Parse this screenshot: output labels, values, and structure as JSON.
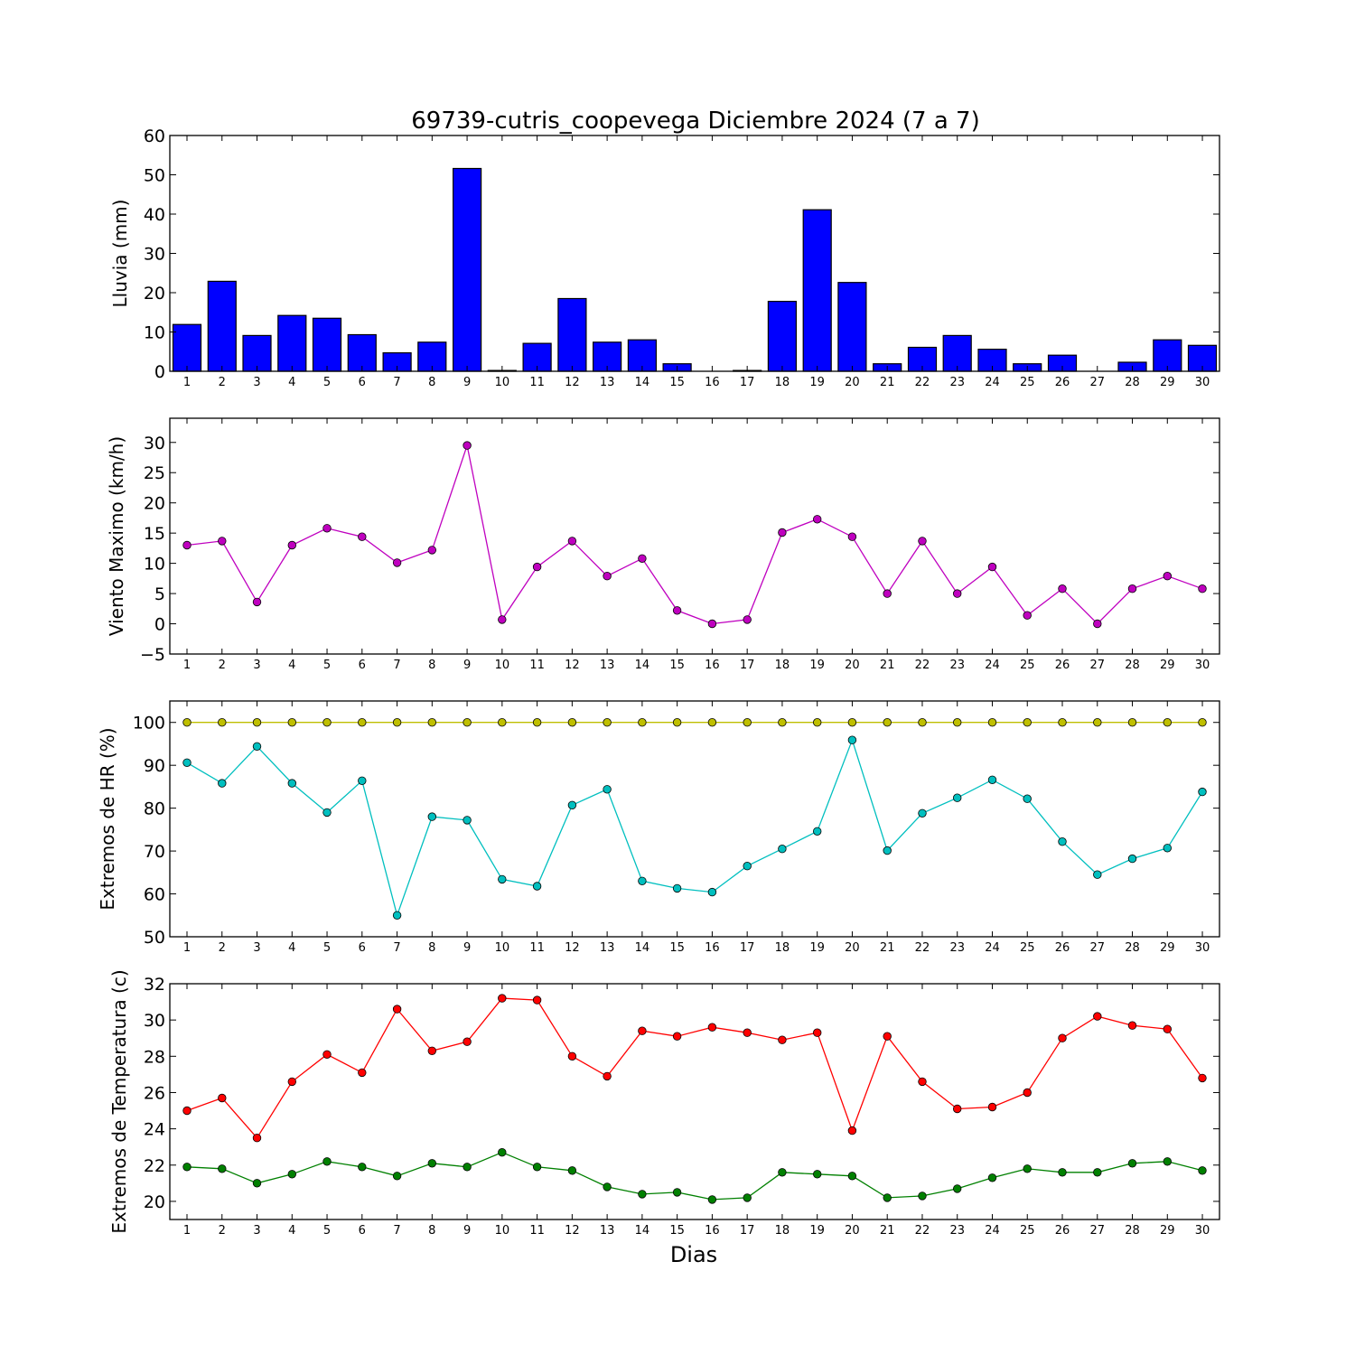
{
  "figure": {
    "title": "69739-cutris_coopevega Diciembre 2024  (7 a 7)",
    "xlabel": "Dias"
  },
  "chart_data": [
    {
      "type": "bar",
      "ylabel": "Lluvia (mm)",
      "ylim": [
        0,
        60
      ],
      "yticks": [
        0,
        10,
        20,
        30,
        40,
        50,
        60
      ],
      "categories": [
        "1",
        "2",
        "3",
        "4",
        "5",
        "6",
        "7",
        "8",
        "9",
        "10",
        "11",
        "12",
        "13",
        "14",
        "15",
        "16",
        "17",
        "18",
        "19",
        "20",
        "21",
        "22",
        "23",
        "24",
        "25",
        "26",
        "27",
        "28",
        "29",
        "30"
      ],
      "series": [
        {
          "color": "#0000ff",
          "values": [
            11.9,
            22.9,
            9.1,
            14.2,
            13.5,
            9.3,
            4.7,
            7.4,
            51.6,
            0.2,
            7.1,
            18.5,
            7.4,
            8.0,
            1.9,
            0.0,
            0.2,
            17.8,
            41.1,
            22.6,
            1.9,
            6.1,
            9.1,
            5.6,
            1.9,
            4.1,
            0.0,
            2.3,
            8.0,
            6.6
          ]
        }
      ],
      "grid": false
    },
    {
      "type": "line",
      "ylabel": "Viento Maximo (km/h)",
      "ylim": [
        -5,
        34
      ],
      "yticks": [
        -5,
        0,
        5,
        10,
        15,
        20,
        25,
        30
      ],
      "categories": [
        "1",
        "2",
        "3",
        "4",
        "5",
        "6",
        "7",
        "8",
        "9",
        "10",
        "11",
        "12",
        "13",
        "14",
        "15",
        "16",
        "17",
        "18",
        "19",
        "20",
        "21",
        "22",
        "23",
        "24",
        "25",
        "26",
        "27",
        "28",
        "29",
        "30"
      ],
      "series": [
        {
          "color": "#bf00bf",
          "values": [
            13.0,
            13.7,
            3.6,
            13.0,
            15.8,
            14.4,
            10.1,
            12.2,
            29.5,
            0.7,
            9.4,
            13.7,
            7.9,
            10.8,
            2.2,
            0.0,
            0.7,
            15.1,
            17.3,
            14.4,
            5.0,
            13.7,
            5.0,
            9.4,
            1.4,
            5.8,
            0.0,
            5.8,
            7.9,
            5.8
          ]
        }
      ],
      "grid": false
    },
    {
      "type": "line",
      "ylabel": "Extremos de HR (%)",
      "ylim": [
        50,
        105
      ],
      "yticks": [
        50,
        60,
        70,
        80,
        90,
        100
      ],
      "categories": [
        "1",
        "2",
        "3",
        "4",
        "5",
        "6",
        "7",
        "8",
        "9",
        "10",
        "11",
        "12",
        "13",
        "14",
        "15",
        "16",
        "17",
        "18",
        "19",
        "20",
        "21",
        "22",
        "23",
        "24",
        "25",
        "26",
        "27",
        "28",
        "29",
        "30"
      ],
      "series": [
        {
          "color": "#bfbf00",
          "values": [
            100,
            100,
            100,
            100,
            100,
            100,
            100,
            100,
            100,
            100,
            100,
            100,
            100,
            100,
            100,
            100,
            100,
            100,
            100,
            100,
            100,
            100,
            100,
            100,
            100,
            100,
            100,
            100,
            100,
            100
          ]
        },
        {
          "color": "#00bfbf",
          "values": [
            90.6,
            85.8,
            94.4,
            85.8,
            79.0,
            86.4,
            55.0,
            78.0,
            77.2,
            63.4,
            61.8,
            80.7,
            84.4,
            63.0,
            61.3,
            60.4,
            66.5,
            70.5,
            74.6,
            95.9,
            70.1,
            78.8,
            82.4,
            86.6,
            82.2,
            72.2,
            64.5,
            68.2,
            70.7,
            83.8
          ]
        }
      ],
      "grid": false
    },
    {
      "type": "line",
      "ylabel": "Extremos de Temperatura (c)",
      "ylim": [
        19,
        32
      ],
      "yticks": [
        20,
        22,
        24,
        26,
        28,
        30,
        32
      ],
      "categories": [
        "1",
        "2",
        "3",
        "4",
        "5",
        "6",
        "7",
        "8",
        "9",
        "10",
        "11",
        "12",
        "13",
        "14",
        "15",
        "16",
        "17",
        "18",
        "19",
        "20",
        "21",
        "22",
        "23",
        "24",
        "25",
        "26",
        "27",
        "28",
        "29",
        "30"
      ],
      "series": [
        {
          "color": "#ff0000",
          "values": [
            25.0,
            25.7,
            23.5,
            26.6,
            28.1,
            27.1,
            30.6,
            28.3,
            28.8,
            31.2,
            31.1,
            28.0,
            26.9,
            29.4,
            29.1,
            29.6,
            29.3,
            28.9,
            29.3,
            23.9,
            29.1,
            26.6,
            25.1,
            25.2,
            26.0,
            29.0,
            30.2,
            29.7,
            29.5,
            26.8
          ]
        },
        {
          "color": "#008000",
          "values": [
            21.9,
            21.8,
            21.0,
            21.5,
            22.2,
            21.9,
            21.4,
            22.1,
            21.9,
            22.7,
            21.9,
            21.7,
            20.8,
            20.4,
            20.5,
            20.1,
            20.2,
            21.6,
            21.5,
            21.4,
            20.2,
            20.3,
            20.7,
            21.3,
            21.8,
            21.6,
            21.6,
            22.1,
            22.2,
            21.7
          ]
        }
      ],
      "grid": false
    }
  ]
}
